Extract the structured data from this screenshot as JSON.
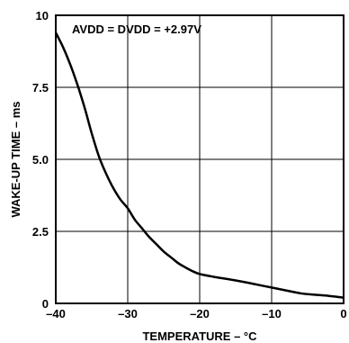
{
  "chart_data": {
    "type": "line",
    "xlabel": "TEMPERATURE – °C",
    "ylabel": "WAKE-UP TIME – ms",
    "xlim": [
      -40,
      0
    ],
    "ylim": [
      0,
      10
    ],
    "x_ticks": [
      "–40",
      "–30",
      "–20",
      "–10",
      "0"
    ],
    "y_ticks": [
      "10",
      "7.5",
      "5.0",
      "2.5",
      "0"
    ],
    "grid": true,
    "annotation": "AVDD = DVDD = +2.97V",
    "series": [
      {
        "x": [
          -40,
          -39,
          -38,
          -37,
          -36,
          -35,
          -34,
          -33,
          -32,
          -31,
          -30,
          -29,
          -28,
          -27,
          -26,
          -25,
          -24,
          -23,
          -22,
          -21,
          -20,
          -18,
          -16,
          -14,
          -12,
          -10,
          -8,
          -6,
          -4,
          -2,
          0
        ],
        "y": [
          9.4,
          8.9,
          8.3,
          7.6,
          6.8,
          5.9,
          5.1,
          4.5,
          4.0,
          3.6,
          3.3,
          2.9,
          2.6,
          2.3,
          2.05,
          1.8,
          1.6,
          1.4,
          1.25,
          1.12,
          1.02,
          0.92,
          0.84,
          0.75,
          0.65,
          0.55,
          0.45,
          0.35,
          0.3,
          0.26,
          0.2
        ]
      }
    ]
  }
}
